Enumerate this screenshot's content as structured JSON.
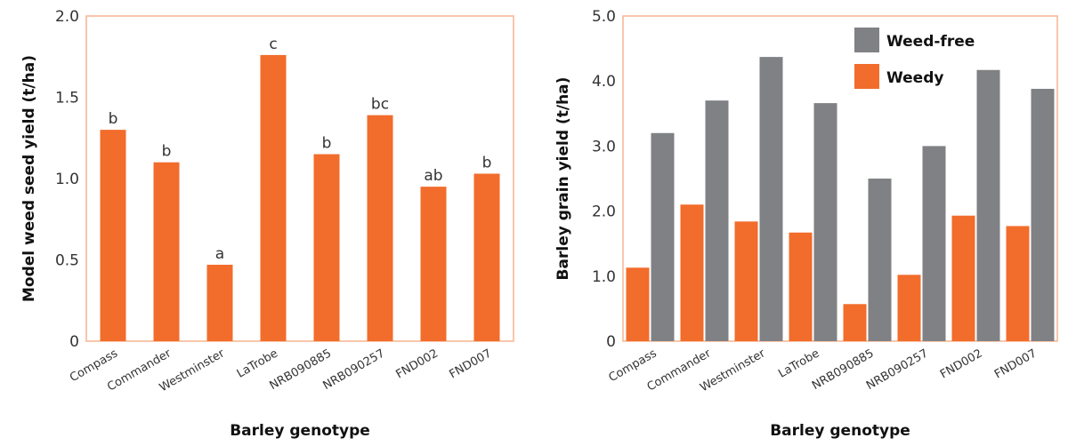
{
  "chart_data": [
    {
      "type": "bar",
      "xlabel": "Barley genotype",
      "ylabel": "Model weed seed yield (t/ha)",
      "categories": [
        "Compass",
        "Commander",
        "Westminster",
        "LaTrobe",
        "NRB090885",
        "NRB090257",
        "FND002",
        "FND007"
      ],
      "values": [
        1.3,
        1.1,
        0.47,
        1.76,
        1.15,
        1.39,
        0.95,
        1.03
      ],
      "bar_labels": [
        "b",
        "b",
        "a",
        "c",
        "b",
        "bc",
        "ab",
        "b"
      ],
      "ylim": [
        0,
        2.0
      ],
      "yticks": [
        "0",
        "0.5",
        "1.0",
        "1.5",
        "2.0"
      ],
      "ytick_values": [
        0,
        0.5,
        1.0,
        1.5,
        2.0
      ],
      "color": "#f26c2b",
      "frame_color": "#f5b48f",
      "grid": false
    },
    {
      "type": "bar",
      "xlabel": "Barley genotype",
      "ylabel": "Barley grain yield (t/ha)",
      "categories": [
        "Compass",
        "Commander",
        "Westminster",
        "LaTrobe",
        "NRB090885",
        "NRB090257",
        "FND002",
        "FND007"
      ],
      "series": [
        {
          "name": "Weedy",
          "color": "#f26c2b",
          "values": [
            1.13,
            2.1,
            1.84,
            1.67,
            0.57,
            1.02,
            1.93,
            1.77
          ]
        },
        {
          "name": "Weed-free",
          "color": "#808184",
          "values": [
            3.2,
            3.7,
            4.37,
            3.66,
            2.5,
            3.0,
            4.17,
            3.88
          ]
        }
      ],
      "legend_order": [
        "Weed-free",
        "Weedy"
      ],
      "legend_position": "top-right",
      "ylim": [
        0,
        5.0
      ],
      "yticks": [
        "0",
        "1.0",
        "2.0",
        "3.0",
        "4.0",
        "5.0"
      ],
      "ytick_values": [
        0,
        1.0,
        2.0,
        3.0,
        4.0,
        5.0
      ],
      "frame_color": "#f5b48f",
      "grid": false
    }
  ]
}
